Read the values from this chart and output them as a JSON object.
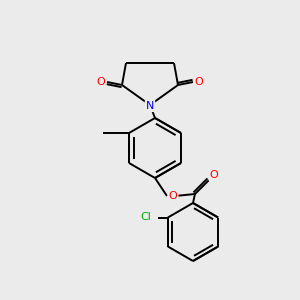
{
  "bg_color": "#ebebeb",
  "bond_color": "#000000",
  "atom_colors": {
    "O": "#ff0000",
    "N": "#0000ff",
    "Cl": "#00aa00",
    "C": "#000000"
  },
  "figsize": [
    3.0,
    3.0
  ],
  "dpi": 100,
  "lw": 1.4,
  "fontsize": 7.5
}
